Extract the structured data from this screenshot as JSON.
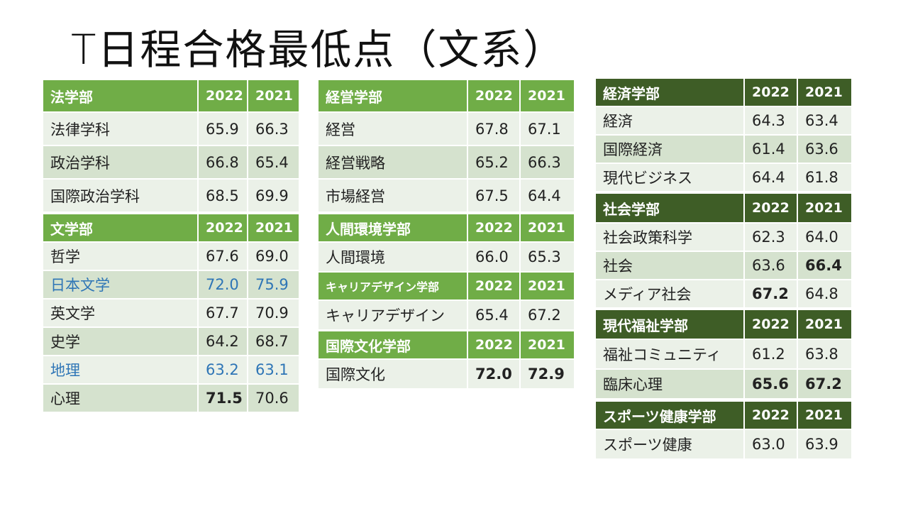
{
  "title": "T日程合格最低点（文系）",
  "colors": {
    "header_light": "#70ad47",
    "header_dark": "#3e5d26",
    "row_odd": "#d5e2ce",
    "row_even": "#ebf1e8",
    "highlight_text": "#2e75b6"
  },
  "tables": {
    "law": {
      "name": "法学部",
      "y1": "2022",
      "y2": "2021",
      "rows": [
        {
          "name": "法律学科",
          "v1": "65.9",
          "v2": "66.3"
        },
        {
          "name": "政治学科",
          "v1": "66.8",
          "v2": "65.4"
        },
        {
          "name": "国際政治学科",
          "v1": "68.5",
          "v2": "69.9"
        }
      ]
    },
    "letters": {
      "name": "文学部",
      "y1": "2022",
      "y2": "2021",
      "rows": [
        {
          "name": "哲学",
          "v1": "67.6",
          "v2": "69.0"
        },
        {
          "name": "日本文学",
          "v1": "72.0",
          "v2": "75.9"
        },
        {
          "name": "英文学",
          "v1": "67.7",
          "v2": "70.9"
        },
        {
          "name": "史学",
          "v1": "64.2",
          "v2": "68.7"
        },
        {
          "name": "地理",
          "v1": "63.2",
          "v2": "63.1"
        },
        {
          "name": "心理",
          "v1": "71.5",
          "v2": "70.6"
        }
      ]
    },
    "business": {
      "name": "経営学部",
      "y1": "2022",
      "y2": "2021",
      "rows": [
        {
          "name": "経営",
          "v1": "67.8",
          "v2": "67.1"
        },
        {
          "name": "経営戦略",
          "v1": "65.2",
          "v2": "66.3"
        },
        {
          "name": "市場経営",
          "v1": "67.5",
          "v2": "64.4"
        }
      ]
    },
    "human_env": {
      "name": "人間環境学部",
      "y1": "2022",
      "y2": "2021",
      "rows": [
        {
          "name": "人間環境",
          "v1": "66.0",
          "v2": "65.3"
        }
      ]
    },
    "career": {
      "name": "キャリアデザイン学部",
      "y1": "2022",
      "y2": "2021",
      "rows": [
        {
          "name": "キャリアデザイン",
          "v1": "65.4",
          "v2": "67.2"
        }
      ]
    },
    "intl_culture": {
      "name": "国際文化学部",
      "y1": "2022",
      "y2": "2021",
      "rows": [
        {
          "name": "国際文化",
          "v1": "72.0",
          "v2": "72.9"
        }
      ]
    },
    "economics": {
      "name": "経済学部",
      "y1": "2022",
      "y2": "2021",
      "rows": [
        {
          "name": "経済",
          "v1": "64.3",
          "v2": "63.4"
        },
        {
          "name": "国際経済",
          "v1": "61.4",
          "v2": "63.6"
        },
        {
          "name": "現代ビジネス",
          "v1": "64.4",
          "v2": "61.8"
        }
      ]
    },
    "sociology": {
      "name": "社会学部",
      "y1": "2022",
      "y2": "2021",
      "rows": [
        {
          "name": "社会政策科学",
          "v1": "62.3",
          "v2": "64.0"
        },
        {
          "name": "社会",
          "v1": "63.6",
          "v2": "66.4"
        },
        {
          "name": "メディア社会",
          "v1": "67.2",
          "v2": "64.8"
        }
      ]
    },
    "welfare": {
      "name": "現代福祉学部",
      "y1": "2022",
      "y2": "2021",
      "rows": [
        {
          "name": "福祉コミュニティ",
          "v1": "61.2",
          "v2": "63.8"
        },
        {
          "name": "臨床心理",
          "v1": "65.6",
          "v2": "67.2"
        }
      ]
    },
    "sports": {
      "name": "スポーツ健康学部",
      "y1": "2022",
      "y2": "2021",
      "rows": [
        {
          "name": "スポーツ健康",
          "v1": "63.0",
          "v2": "63.9"
        }
      ]
    }
  }
}
